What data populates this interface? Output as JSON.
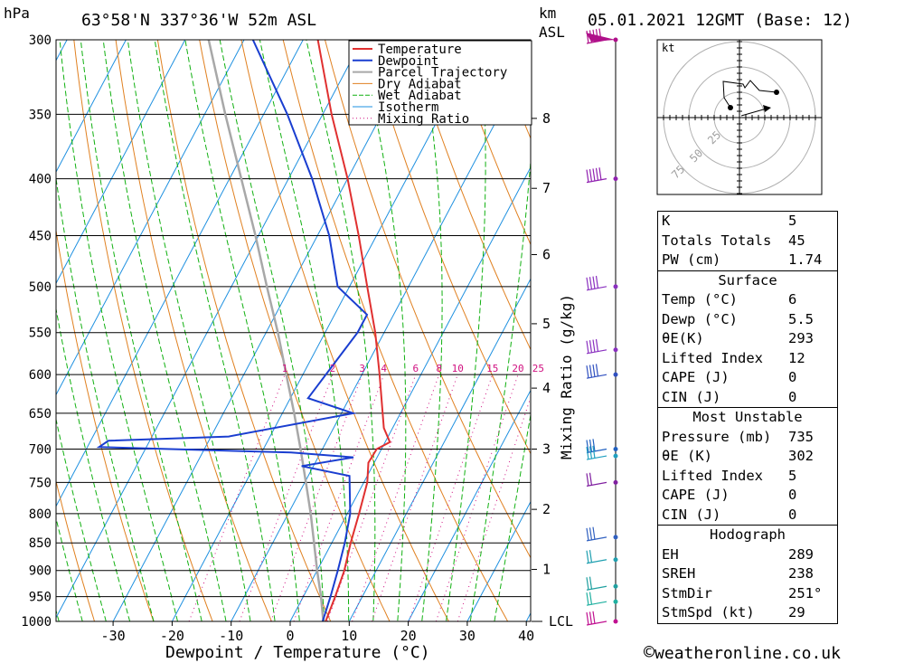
{
  "header": {
    "units_left": "hPa",
    "location": "63°58'N  337°36'W  52m  ASL",
    "units_km": "km",
    "units_asl": "ASL",
    "datetime": "05.01.2021  12GMT  (Base: 12)"
  },
  "chart_data": {
    "type": "skew-t log-p sounding",
    "xlabel": "Dewpoint / Temperature (°C)",
    "ylabel_right": "Mixing Ratio (g/kg)",
    "pressure_ticks": [
      300,
      350,
      400,
      450,
      500,
      550,
      600,
      650,
      700,
      750,
      800,
      850,
      900,
      950,
      1000
    ],
    "temperature_ticks": [
      -30,
      -20,
      -10,
      0,
      10,
      20,
      30,
      40
    ],
    "height_ticks_km": [
      {
        "km": "8",
        "p": 353
      },
      {
        "km": "7",
        "p": 408
      },
      {
        "km": "6",
        "p": 468
      },
      {
        "km": "5",
        "p": 540
      },
      {
        "km": "4",
        "p": 617
      },
      {
        "km": "3",
        "p": 700
      },
      {
        "km": "2",
        "p": 793
      },
      {
        "km": "1",
        "p": 898
      }
    ],
    "lcl_label": "LCL",
    "lcl_p": 1000,
    "mixing_ratio_labels": [
      "1",
      "2",
      "3",
      "4",
      "6",
      "8",
      "10",
      "15",
      "20",
      "25"
    ],
    "legend": [
      "Temperature",
      "Dewpoint",
      "Parcel Trajectory",
      "Dry Adiabat",
      "Wet Adiabat",
      "Isotherm",
      "Mixing Ratio"
    ],
    "colors": {
      "temperature": "#e03030",
      "dewpoint": "#1a3ed0",
      "parcel": "#a8a8a8",
      "dry": "#e08020",
      "wet": "#10b010",
      "isotherm": "#1e90e0",
      "mixing": "#d01080"
    },
    "temperature_profile": [
      {
        "p": 1000,
        "t": 6
      },
      {
        "p": 950,
        "t": 5.4
      },
      {
        "p": 900,
        "t": 4.6
      },
      {
        "p": 850,
        "t": 3.2
      },
      {
        "p": 800,
        "t": 2.0
      },
      {
        "p": 750,
        "t": 0.6
      },
      {
        "p": 720,
        "t": -1.0
      },
      {
        "p": 700,
        "t": -0.8
      },
      {
        "p": 690,
        "t": 0.8
      },
      {
        "p": 670,
        "t": -1.5
      },
      {
        "p": 650,
        "t": -3.0
      },
      {
        "p": 600,
        "t": -7.0
      },
      {
        "p": 550,
        "t": -11.5
      },
      {
        "p": 500,
        "t": -17.0
      },
      {
        "p": 450,
        "t": -23.0
      },
      {
        "p": 400,
        "t": -30.0
      },
      {
        "p": 350,
        "t": -38.5
      },
      {
        "p": 300,
        "t": -47.5
      }
    ],
    "dewpoint_profile": [
      {
        "p": 1000,
        "t": 5.5
      },
      {
        "p": 950,
        "t": 4.6
      },
      {
        "p": 900,
        "t": 3.5
      },
      {
        "p": 850,
        "t": 2.2
      },
      {
        "p": 800,
        "t": 0.5
      },
      {
        "p": 740,
        "t": -3.0
      },
      {
        "p": 725,
        "t": -12.0
      },
      {
        "p": 712,
        "t": -4.0
      },
      {
        "p": 705,
        "t": -15.0
      },
      {
        "p": 697,
        "t": -48.0
      },
      {
        "p": 688,
        "t": -47.0
      },
      {
        "p": 682,
        "t": -27.0
      },
      {
        "p": 650,
        "t": -8.0
      },
      {
        "p": 630,
        "t": -17.0
      },
      {
        "p": 550,
        "t": -14.5
      },
      {
        "p": 530,
        "t": -14.5
      },
      {
        "p": 500,
        "t": -22.0
      },
      {
        "p": 450,
        "t": -28.0
      },
      {
        "p": 400,
        "t": -36.0
      },
      {
        "p": 350,
        "t": -46.0
      },
      {
        "p": 300,
        "t": -58.5
      }
    ],
    "parcel_profile": [
      {
        "p": 1000,
        "t": 5.6
      },
      {
        "p": 950,
        "t": 3.0
      },
      {
        "p": 900,
        "t": 0.0
      },
      {
        "p": 850,
        "t": -3.0
      },
      {
        "p": 800,
        "t": -6.2
      },
      {
        "p": 750,
        "t": -9.8
      },
      {
        "p": 700,
        "t": -13.7
      },
      {
        "p": 650,
        "t": -18.0
      },
      {
        "p": 600,
        "t": -22.8
      },
      {
        "p": 550,
        "t": -28.0
      },
      {
        "p": 500,
        "t": -34.0
      },
      {
        "p": 450,
        "t": -40.5
      },
      {
        "p": 400,
        "t": -48.0
      },
      {
        "p": 350,
        "t": -56.5
      },
      {
        "p": 300,
        "t": -66.0
      }
    ],
    "wind_barbs": [
      {
        "p": 300,
        "color": "#b0108a",
        "speed": 50
      },
      {
        "p": 400,
        "color": "#9020b0",
        "speed": 45
      },
      {
        "p": 500,
        "color": "#8a30c0",
        "speed": 40
      },
      {
        "p": 570,
        "color": "#8a30c0",
        "speed": 40
      },
      {
        "p": 600,
        "color": "#3050c0",
        "speed": 35
      },
      {
        "p": 700,
        "color": "#2060c0",
        "speed": 30
      },
      {
        "p": 710,
        "color": "#20a0c0",
        "speed": 30
      },
      {
        "p": 750,
        "color": "#8020a0",
        "speed": 20
      },
      {
        "p": 840,
        "color": "#3060c0",
        "speed": 25
      },
      {
        "p": 880,
        "color": "#20a0b0",
        "speed": 20
      },
      {
        "p": 930,
        "color": "#20a0a0",
        "speed": 15
      },
      {
        "p": 960,
        "color": "#20b0a0",
        "speed": 15
      },
      {
        "p": 1000,
        "color": "#c01090",
        "speed": 25
      }
    ]
  },
  "hodograph": {
    "unit": "kt",
    "ring_labels": [
      "25",
      "50",
      "75"
    ]
  },
  "indices": {
    "rows": [
      {
        "k": "K",
        "v": "5"
      },
      {
        "k": "Totals Totals",
        "v": "45"
      },
      {
        "k": "PW (cm)",
        "v": "1.74"
      }
    ]
  },
  "surface": {
    "title": "Surface",
    "rows": [
      {
        "k": "Temp (°C)",
        "v": "6"
      },
      {
        "k": "Dewp (°C)",
        "v": "5.5"
      },
      {
        "k": "θE(K)",
        "v": "293"
      },
      {
        "k": "Lifted Index",
        "v": "12"
      },
      {
        "k": "CAPE (J)",
        "v": "0"
      },
      {
        "k": "CIN (J)",
        "v": "0"
      }
    ]
  },
  "most_unstable": {
    "title": "Most Unstable",
    "rows": [
      {
        "k": "Pressure (mb)",
        "v": "735"
      },
      {
        "k": "θE (K)",
        "v": "302"
      },
      {
        "k": "Lifted Index",
        "v": "5"
      },
      {
        "k": "CAPE (J)",
        "v": "0"
      },
      {
        "k": "CIN (J)",
        "v": "0"
      }
    ]
  },
  "hodograph_stats": {
    "title": "Hodograph",
    "rows": [
      {
        "k": "EH",
        "v": "289"
      },
      {
        "k": "SREH",
        "v": "238"
      },
      {
        "k": "StmDir",
        "v": "251°"
      },
      {
        "k": "StmSpd (kt)",
        "v": "29"
      }
    ]
  },
  "copyright": "weatheronline.co.uk",
  "copyright_symbol": "©"
}
